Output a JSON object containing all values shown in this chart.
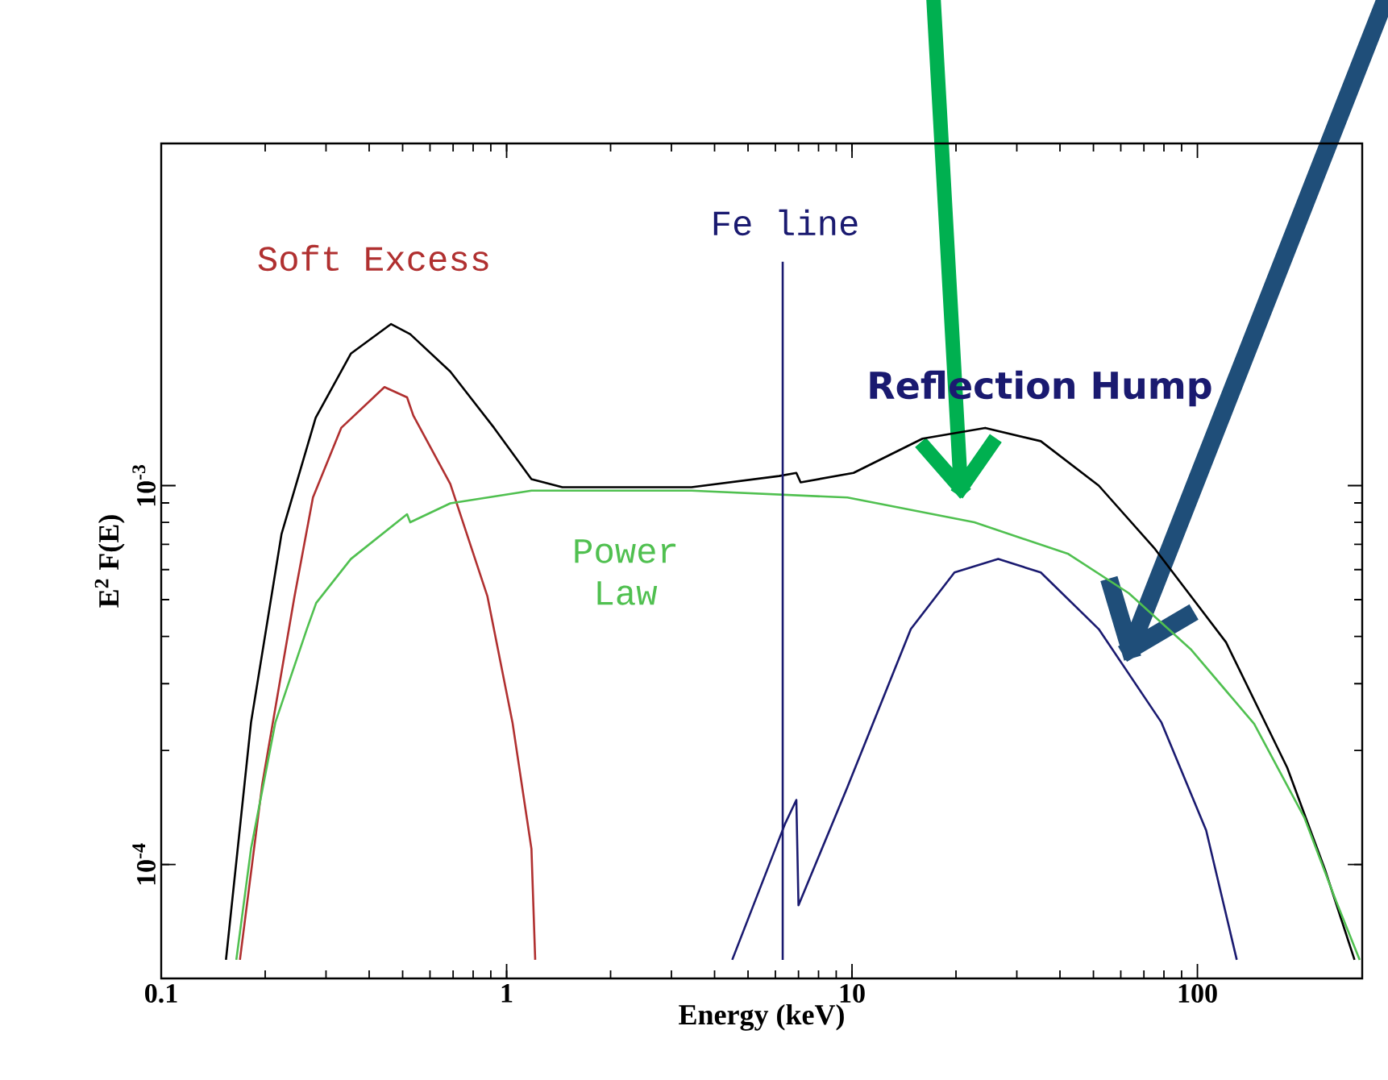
{
  "chart_data": {
    "type": "line",
    "xlabel": "Energy (keV)",
    "ylabel": "E$^{2}$ F(E)",
    "log": "xy",
    "xlim": [
      0.1,
      300
    ],
    "ylim": [
      5e-05,
      0.008
    ],
    "xticks": [
      0.1,
      1,
      10,
      100
    ],
    "yticks": [
      {
        "value": 0.0001,
        "label": "10$^{-4}$"
      },
      {
        "value": 0.001,
        "label": "10$^{-3}$"
      }
    ],
    "series": [
      {
        "color": "#000000",
        "x": [
          0.154,
          0.182,
          0.223,
          0.28,
          0.354,
          0.463,
          0.526,
          0.687,
          0.92,
          1.18,
          1.45,
          3.43,
          6.15,
          6.9,
          7.1,
          10.1,
          16,
          24.3,
          35.2,
          51.8,
          75.4,
          121,
          182,
          234,
          285
        ],
        "values": [
          5.6e-05,
          0.000237,
          0.000745,
          0.00151,
          0.00223,
          0.00267,
          0.00251,
          0.002,
          0.00142,
          0.00104,
          0.00099,
          0.00099,
          0.00106,
          0.00108,
          0.00102,
          0.00108,
          0.00133,
          0.00142,
          0.00131,
          0.001,
          0.00068,
          0.000386,
          0.00018,
          9.7e-05,
          5.6e-05
        ]
      },
      {
        "name": "Soft Excess",
        "color": "#b03030",
        "x": [
          0.169,
          0.196,
          0.243,
          0.275,
          0.332,
          0.443,
          0.515,
          0.537,
          0.687,
          0.88,
          1.04,
          1.18,
          1.21
        ],
        "values": [
          5.6e-05,
          0.000162,
          0.000508,
          0.00093,
          0.00142,
          0.00182,
          0.00171,
          0.00153,
          0.00101,
          0.00051,
          0.000237,
          0.00011,
          5.6e-05
        ]
      },
      {
        "name": "Power Law",
        "color": "#50c050",
        "x": [
          0.165,
          0.182,
          0.214,
          0.264,
          0.281,
          0.354,
          0.515,
          0.526,
          0.687,
          1.18,
          3.43,
          9.7,
          22.6,
          42.3,
          63.3,
          95.6,
          146,
          204,
          252,
          295
        ],
        "values": [
          5.6e-05,
          0.00011,
          0.000237,
          0.000418,
          0.00049,
          0.00064,
          0.00084,
          0.0008,
          0.000898,
          0.00097,
          0.00097,
          0.00093,
          0.0008,
          0.00066,
          0.00052,
          0.00037,
          0.000235,
          0.000133,
          8e-05,
          5.6e-05
        ]
      },
      {
        "name": "Reflection Hump",
        "color": "#1a1a70",
        "x": [
          4.5,
          6.4,
          6.9,
          7.0,
          9.7,
          14.8,
          19.8,
          26.5,
          35.2,
          51.8,
          78.7,
          106,
          130
        ],
        "values": [
          5.6e-05,
          0.000128,
          0.000148,
          7.8e-05,
          0.00016,
          0.000418,
          0.00059,
          0.00064,
          0.00059,
          0.000418,
          0.000237,
          0.000123,
          5.6e-05
        ]
      },
      {
        "name": "Fe line",
        "color": "#1a1a70",
        "x": [
          6.3,
          6.3
        ],
        "values": [
          5.6e-05,
          0.0039
        ]
      }
    ]
  }
}
